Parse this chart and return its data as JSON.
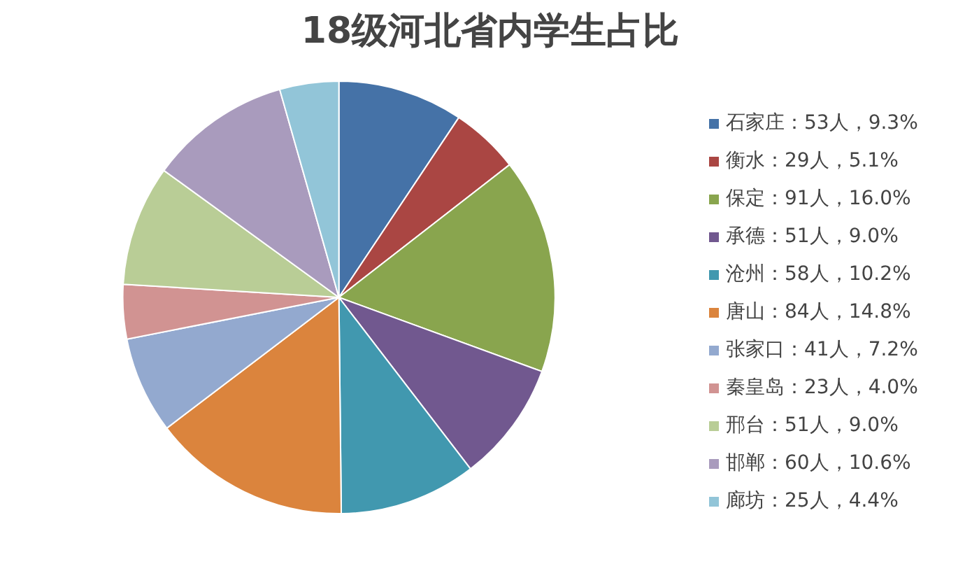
{
  "chart_data": {
    "type": "pie",
    "title": "18级河北省内学生占比",
    "categories": [
      "石家庄：53人，9.3%",
      "衡水：29人，5.1%",
      "保定：91人，16.0%",
      "承德：51人，9.0%",
      "沧州：58人，10.2%",
      "唐山：84人，14.8%",
      "张家口：41人，7.2%",
      "秦皇岛：23人，4.0%",
      "邢台：51人，9.0%",
      "邯郸：60人，10.6%",
      "廊坊：25人，4.4%"
    ],
    "values": [
      53,
      29,
      91,
      51,
      58,
      84,
      41,
      23,
      51,
      60,
      25
    ],
    "colors": [
      "#4572a7",
      "#aa4643",
      "#89a54e",
      "#71588f",
      "#4198af",
      "#db843d",
      "#93a9cf",
      "#d19392",
      "#b9cd96",
      "#a99bbd",
      "#92c5d8"
    ],
    "legend": "right"
  }
}
